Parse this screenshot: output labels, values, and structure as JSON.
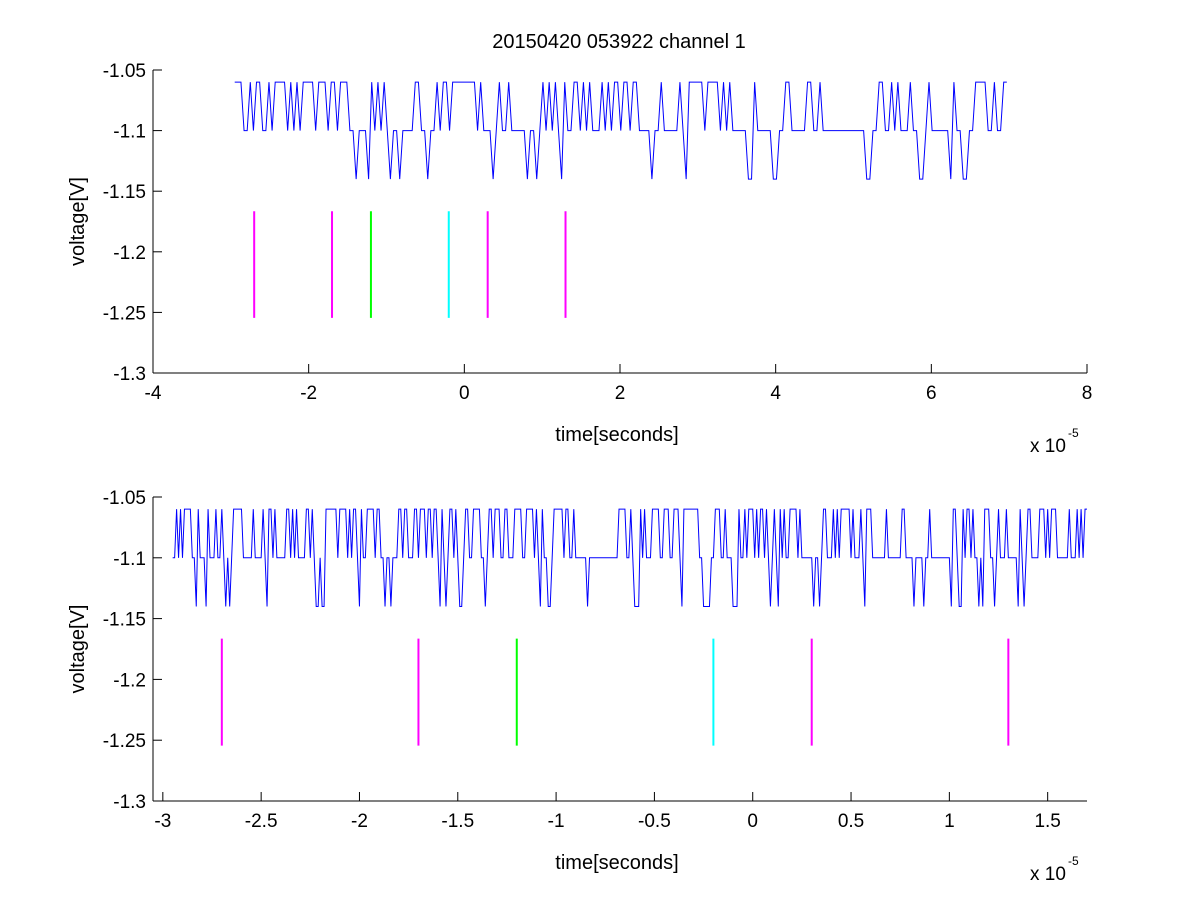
{
  "figure": {
    "title": "20150420 053922 channel 1",
    "background": "#ffffff"
  },
  "colors": {
    "signal": "#0000ff",
    "magenta": "#ff00ff",
    "green": "#00ff00",
    "cyan": "#00ffff",
    "axes": "#000000"
  },
  "chart_data": [
    {
      "type": "line",
      "title": "20150420 053922 channel 1",
      "xlabel": "time[seconds]",
      "ylabel": "voltage[V]",
      "x_scale_label": "x 10",
      "x_scale_exponent": "-5",
      "xlim": [
        -4,
        8
      ],
      "ylim": [
        -1.3,
        -1.05
      ],
      "xticks": [
        -4,
        -2,
        0,
        2,
        4,
        6,
        8
      ],
      "xtick_labels": [
        "-4",
        "-2",
        "0",
        "2",
        "4",
        "6",
        "8"
      ],
      "yticks": [
        -1.3,
        -1.25,
        -1.2,
        -1.15,
        -1.1,
        -1.05
      ],
      "ytick_labels": [
        "-1.3",
        "-1.25",
        "-1.2",
        "-1.15",
        "-1.1",
        "-1.05"
      ],
      "grid": false,
      "series": [
        {
          "kind": "quantized-signal",
          "color": "#0000ff",
          "x_range": [
            -2.95,
            7.0
          ],
          "levels": [
            -1.14,
            -1.1,
            -1.06
          ],
          "baseline": -1.1
        }
      ],
      "markers": [
        {
          "x": -2.7,
          "y_range": [
            -1.2545,
            -1.1665
          ],
          "color": "#ff00ff"
        },
        {
          "x": -1.7,
          "y_range": [
            -1.2545,
            -1.1665
          ],
          "color": "#ff00ff"
        },
        {
          "x": -1.2,
          "y_range": [
            -1.2545,
            -1.1665
          ],
          "color": "#00ff00"
        },
        {
          "x": -0.2,
          "y_range": [
            -1.2545,
            -1.1665
          ],
          "color": "#00ffff"
        },
        {
          "x": 0.3,
          "y_range": [
            -1.2545,
            -1.1665
          ],
          "color": "#ff00ff"
        },
        {
          "x": 1.3,
          "y_range": [
            -1.2545,
            -1.1665
          ],
          "color": "#ff00ff"
        }
      ]
    },
    {
      "type": "line",
      "title": "",
      "xlabel": "time[seconds]",
      "ylabel": "voltage[V]",
      "x_scale_label": "x 10",
      "x_scale_exponent": "-5",
      "xlim": [
        -3.05,
        1.7
      ],
      "ylim": [
        -1.3,
        -1.05
      ],
      "xticks": [
        -3,
        -2.5,
        -2,
        -1.5,
        -1,
        -0.5,
        0,
        0.5,
        1,
        1.5
      ],
      "xtick_labels": [
        "-3",
        "-2.5",
        "-2",
        "-1.5",
        "-1",
        "-0.5",
        "0",
        "0.5",
        "1",
        "1.5"
      ],
      "yticks": [
        -1.3,
        -1.25,
        -1.2,
        -1.15,
        -1.1,
        -1.05
      ],
      "ytick_labels": [
        "-1.3",
        "-1.25",
        "-1.2",
        "-1.15",
        "-1.1",
        "-1.05"
      ],
      "grid": false,
      "series": [
        {
          "kind": "quantized-signal",
          "color": "#0000ff",
          "x_range": [
            -2.95,
            1.7
          ],
          "levels": [
            -1.14,
            -1.1,
            -1.06
          ],
          "baseline": -1.1
        }
      ],
      "markers": [
        {
          "x": -2.7,
          "y_range": [
            -1.2545,
            -1.1665
          ],
          "color": "#ff00ff"
        },
        {
          "x": -1.7,
          "y_range": [
            -1.2545,
            -1.1665
          ],
          "color": "#ff00ff"
        },
        {
          "x": -1.2,
          "y_range": [
            -1.2545,
            -1.1665
          ],
          "color": "#00ff00"
        },
        {
          "x": -0.2,
          "y_range": [
            -1.2545,
            -1.1665
          ],
          "color": "#00ffff"
        },
        {
          "x": 0.3,
          "y_range": [
            -1.2545,
            -1.1665
          ],
          "color": "#ff00ff"
        },
        {
          "x": 1.3,
          "y_range": [
            -1.2545,
            -1.1665
          ],
          "color": "#ff00ff"
        }
      ]
    }
  ]
}
